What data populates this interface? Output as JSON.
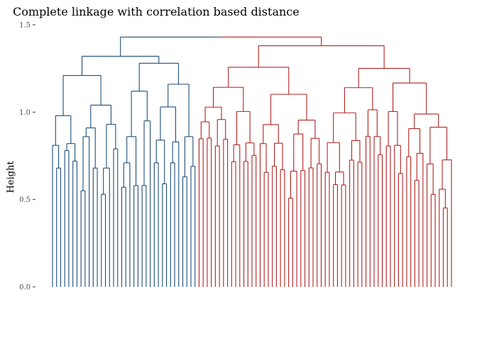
{
  "chart_data": {
    "type": "dendrogram",
    "title": "Complete linkage with correlation based distance",
    "ylabel": "Height",
    "xlabel": "",
    "ylim": [
      0,
      1.5
    ],
    "y_ticks": [
      "0.0",
      "0.5",
      "1.0",
      "1.5"
    ],
    "grid": false,
    "n_leaves": 99,
    "root_height": 1.43,
    "clusters": [
      {
        "color": "#1f4e79",
        "leaves": 36,
        "height": 1.32
      },
      {
        "color": "#b22222",
        "leaves": 63,
        "height": 1.38
      }
    ],
    "merges": [
      {
        "a": 1,
        "b": 2,
        "h": 0.68
      },
      {
        "a": 0,
        "b": "n1",
        "h": 0.81
      },
      {
        "a": 3,
        "b": 4,
        "h": 0.78
      },
      {
        "a": 5,
        "b": 6,
        "h": 0.72
      },
      {
        "a": "n3",
        "b": "n4",
        "h": 0.82
      },
      {
        "a": "n2",
        "b": "n5",
        "h": 0.98
      },
      {
        "a": 7,
        "b": 8,
        "h": 0.55
      },
      {
        "a": 9,
        "b": "n7",
        "h": 0.86
      },
      {
        "a": 10,
        "b": 11,
        "h": 0.68
      },
      {
        "a": "n8",
        "b": "n9",
        "h": 0.91
      },
      {
        "a": 12,
        "b": 13,
        "h": 0.53
      },
      {
        "a": 14,
        "b": "n11",
        "h": 0.68
      },
      {
        "a": 15,
        "b": 16,
        "h": 0.79
      },
      {
        "a": "n12",
        "b": "n13",
        "h": 0.93
      },
      {
        "a": "n10",
        "b": "n14",
        "h": 1.04
      },
      {
        "a": "n6",
        "b": "n15",
        "h": 1.21
      },
      {
        "a": 17,
        "b": 18,
        "h": 0.57
      },
      {
        "a": 19,
        "b": "n17",
        "h": 0.71
      },
      {
        "a": 20,
        "b": 21,
        "h": 0.58
      },
      {
        "a": "n18",
        "b": "n19",
        "h": 0.86
      },
      {
        "a": 22,
        "b": 23,
        "h": 0.58
      },
      {
        "a": 24,
        "b": "n21",
        "h": 0.95
      },
      {
        "a": "n20",
        "b": "n22",
        "h": 1.12
      },
      {
        "a": 25,
        "b": 26,
        "h": 0.71
      },
      {
        "a": 27,
        "b": 28,
        "h": 0.59
      },
      {
        "a": "n24",
        "b": "n25",
        "h": 0.84
      },
      {
        "a": 29,
        "b": 30,
        "h": 0.71
      },
      {
        "a": 31,
        "b": "n27",
        "h": 0.83
      },
      {
        "a": "n26",
        "b": "n28",
        "h": 1.03
      },
      {
        "a": 32,
        "b": 33,
        "h": 0.63
      },
      {
        "a": 34,
        "b": 35,
        "h": 0.69
      },
      {
        "a": "n30",
        "b": "n31",
        "h": 0.86
      },
      {
        "a": "n32",
        "b": "n29",
        "h": 1.16
      },
      {
        "a": "n23",
        "b": "n33",
        "h": 1.28
      },
      {
        "a": "n16",
        "b": "n34",
        "h": 1.32
      }
    ]
  }
}
